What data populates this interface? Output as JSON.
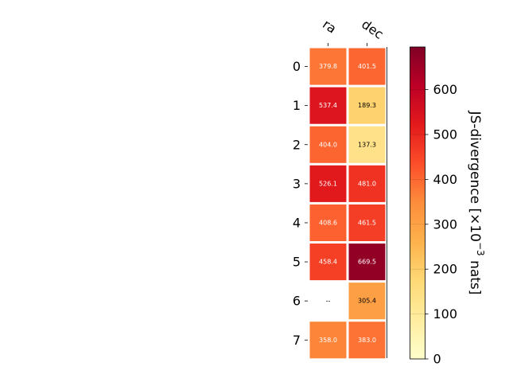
{
  "chart_data": {
    "type": "heatmap",
    "columns": [
      "ra",
      "dec"
    ],
    "rows": [
      "0",
      "1",
      "2",
      "3",
      "4",
      "5",
      "6",
      "7"
    ],
    "values": [
      [
        379.8,
        401.5
      ],
      [
        537.4,
        189.3
      ],
      [
        404.0,
        137.3
      ],
      [
        526.1,
        481.0
      ],
      [
        408.6,
        461.5
      ],
      [
        458.4,
        669.5
      ],
      [
        null,
        305.4
      ],
      [
        358.0,
        383.0
      ]
    ],
    "cell_labels": [
      [
        "379.8",
        "401.5"
      ],
      [
        "537.4",
        "189.3"
      ],
      [
        "404.0",
        "137.3"
      ],
      [
        "526.1",
        "481.0"
      ],
      [
        "408.6",
        "461.5"
      ],
      [
        "458.4",
        "669.5"
      ],
      [
        "--",
        "305.4"
      ],
      [
        "358.0",
        "383.0"
      ]
    ],
    "colorbar": {
      "label_prefix": "JS-divergence [×10",
      "label_exp": "−3",
      "label_suffix": " nats]",
      "min": 0,
      "max": 695,
      "ticks": [
        0,
        100,
        200,
        300,
        400,
        500,
        600
      ],
      "colormap": "YlOrRd"
    },
    "missing_label": "--"
  }
}
